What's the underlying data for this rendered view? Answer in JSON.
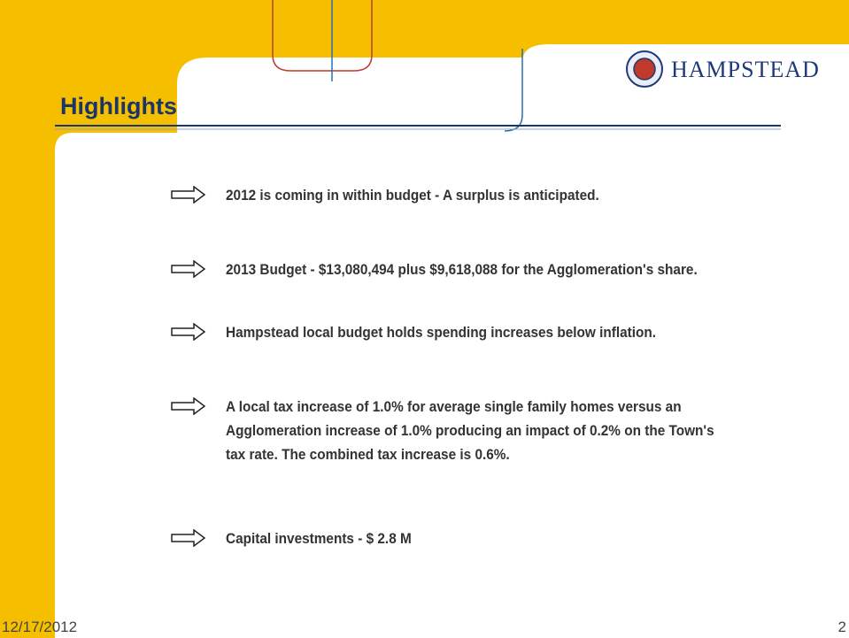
{
  "header": {
    "title": "Highlights",
    "logo_text": "HAMPSTEAD"
  },
  "bullets": [
    "2012 is coming in within budget - A surplus is anticipated.",
    "2013 Budget -  $13,080,494 plus $9,618,088 for the Agglomeration's share.",
    "Hampstead local budget holds spending increases below inflation.",
    "A local tax increase of 1.0% for average single family homes versus an Agglomeration increase of 1.0% producing an impact of 0.2% on the Town's tax rate. The combined tax increase is 0.6%.",
    "Capital investments -  $ 2.8 M"
  ],
  "footer": {
    "date": "12/17/2012",
    "page": "2"
  }
}
